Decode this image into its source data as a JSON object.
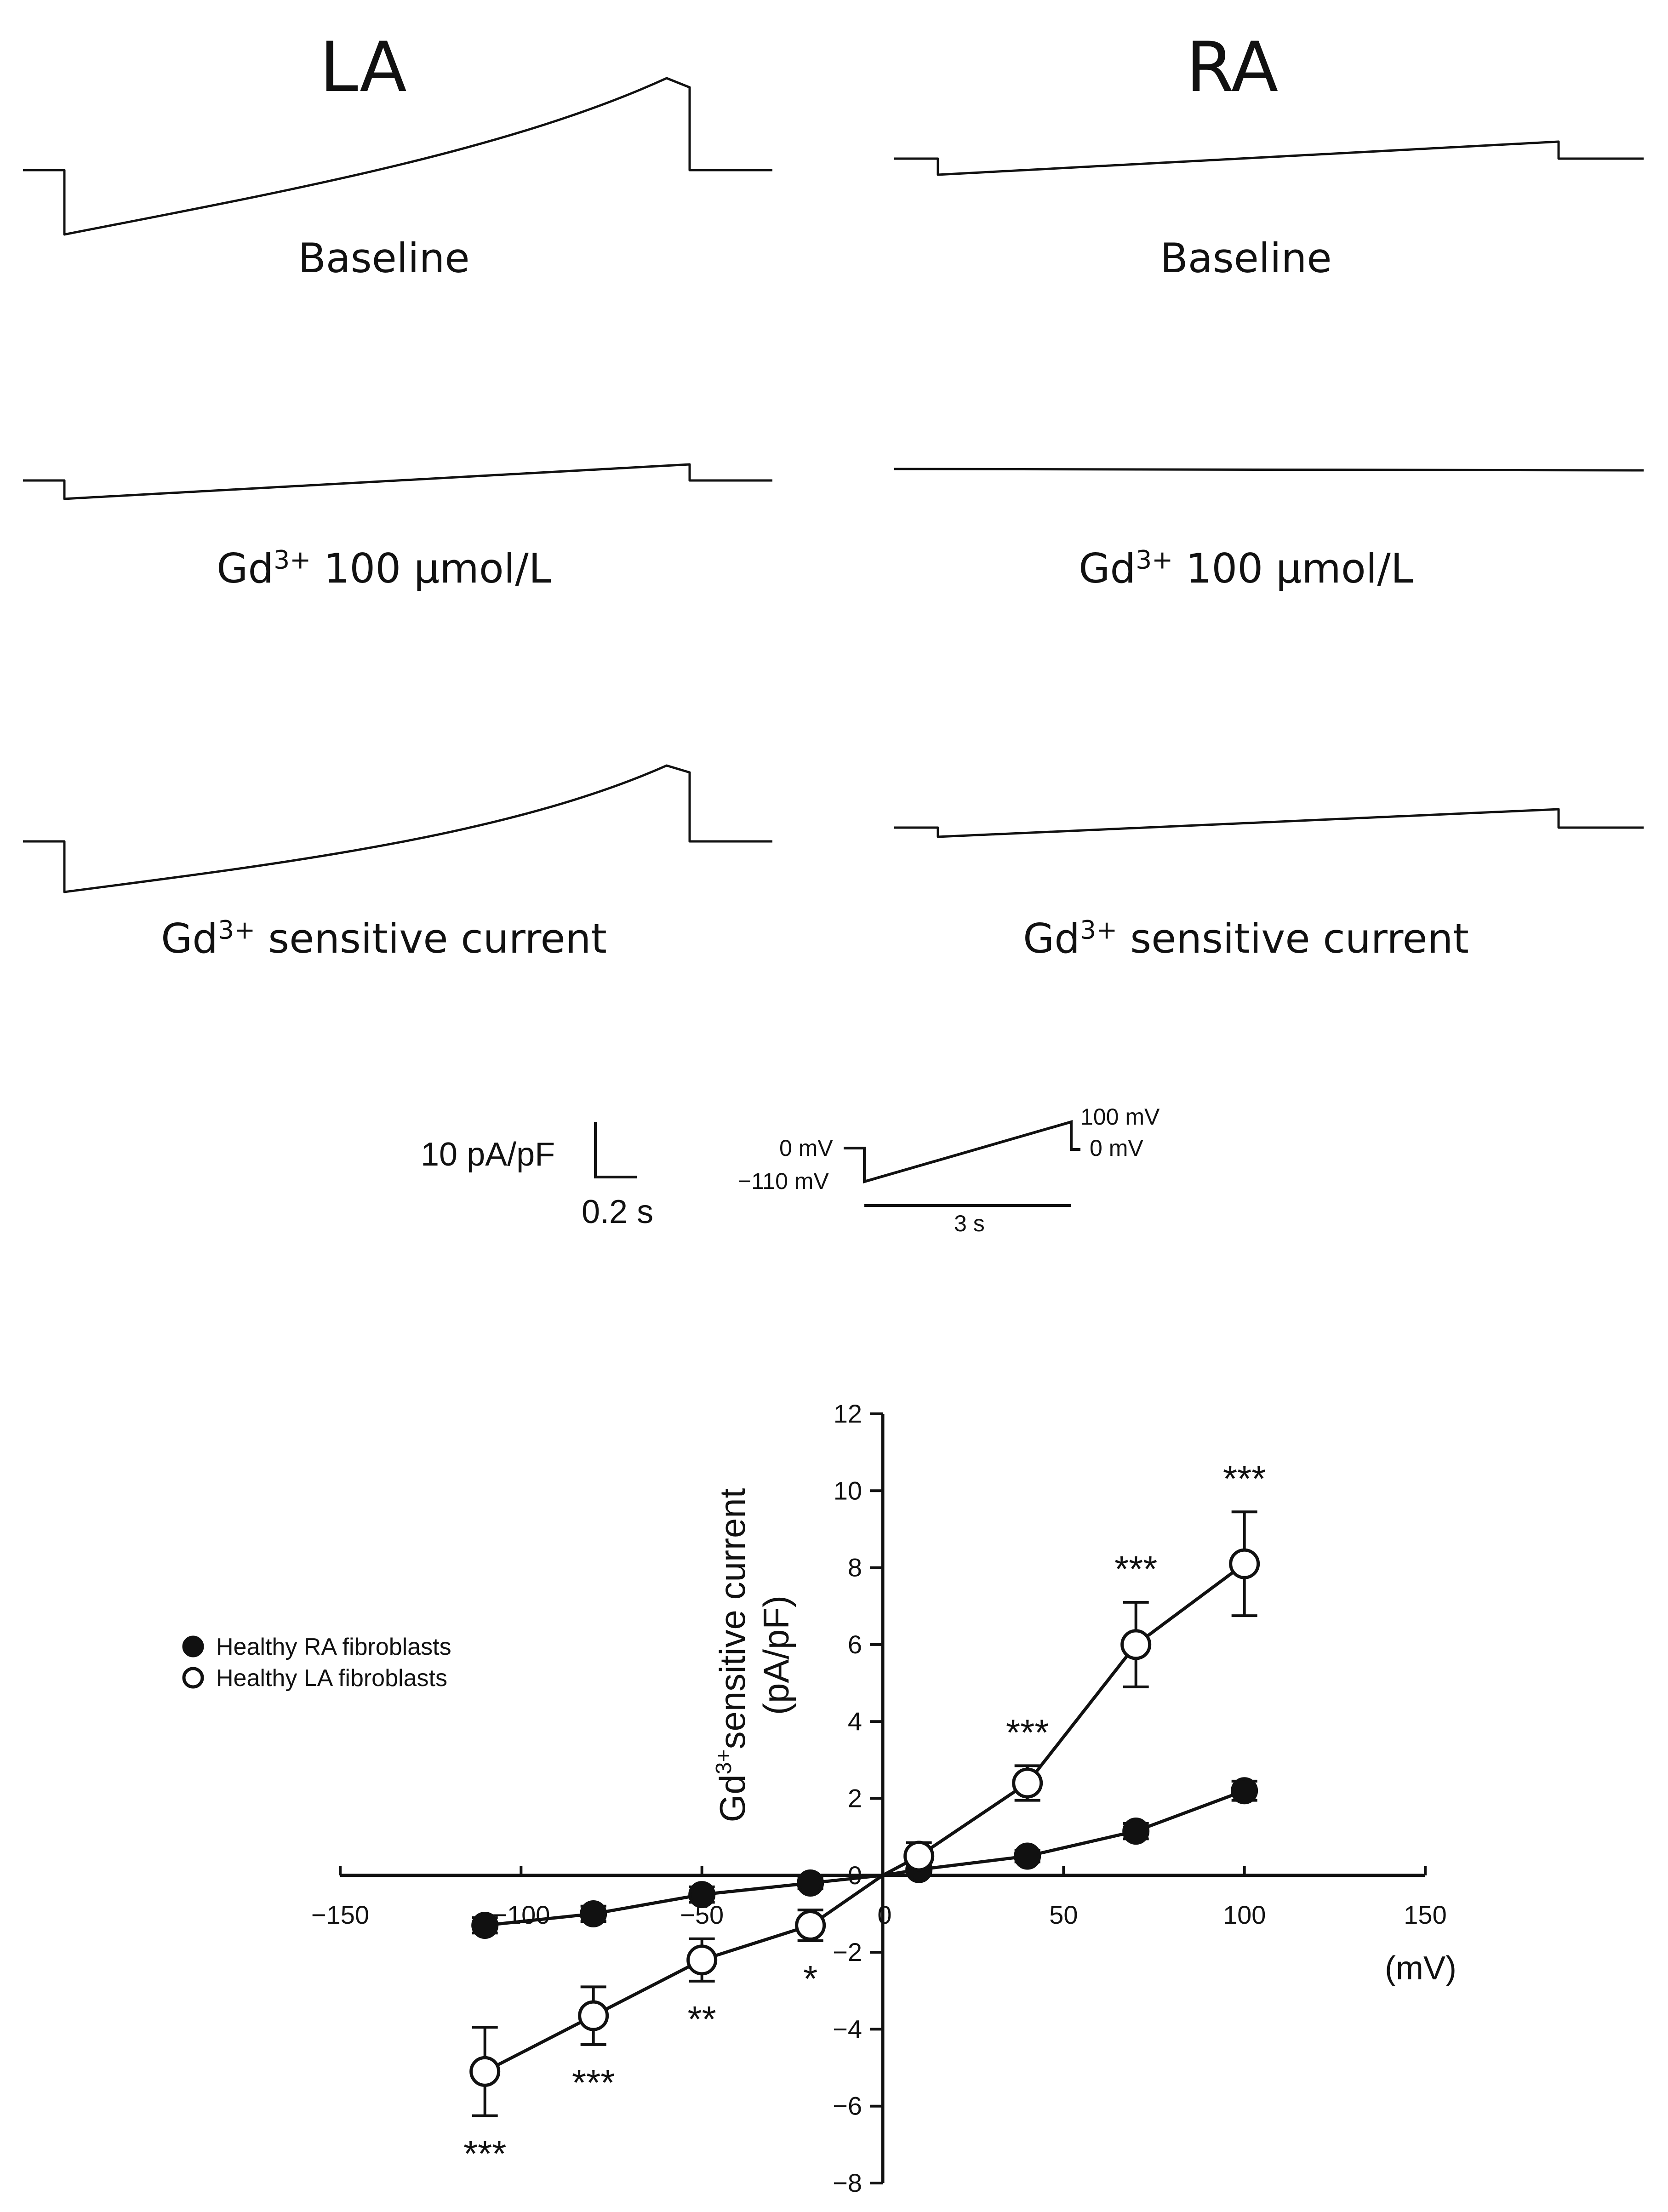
{
  "panels": {
    "la_title": "LA",
    "ra_title": "RA",
    "labels": {
      "baseline": "Baseline",
      "gd_prefix": "Gd",
      "gd_sup": "3+",
      "gd_dose_rest": " 100 µmol/L",
      "sensitive_rest": " sensitive current"
    }
  },
  "scale_bar": {
    "current": "10 pA/pF",
    "time": "0.2 s"
  },
  "protocol": {
    "start_hold": "0 mV",
    "ramp_start": "−110 mV",
    "ramp_end": "100 mV",
    "end_hold": "0 mV",
    "duration": "3 s"
  },
  "chart_data": {
    "type": "scatter",
    "title": "",
    "xlabel": "(mV)",
    "ylabel_main": "sensitive current",
    "ylabel_prefix": "Gd",
    "ylabel_sup": "3+",
    "ylabel_units": "(pA/pF)",
    "xlim": [
      -150,
      150
    ],
    "ylim": [
      -8,
      12
    ],
    "xticks": [
      -150,
      -100,
      -50,
      0,
      50,
      100,
      150
    ],
    "yticks": [
      -8,
      -6,
      -4,
      -2,
      0,
      2,
      4,
      6,
      8,
      10,
      12
    ],
    "legend_position": "left",
    "series": [
      {
        "name": "Healthy RA fibroblasts",
        "marker": "filled-circle",
        "x": [
          -110,
          -80,
          -50,
          -20,
          0,
          10,
          40,
          70,
          100
        ],
        "y": [
          -1.3,
          -1.0,
          -0.5,
          -0.2,
          0,
          0.15,
          0.5,
          1.15,
          2.2
        ],
        "err": [
          0.2,
          0.2,
          0.2,
          0.15,
          0,
          0.1,
          0.15,
          0.2,
          0.25
        ]
      },
      {
        "name": "Healthy LA fibroblasts",
        "marker": "open-circle",
        "x": [
          -110,
          -80,
          -50,
          -20,
          0,
          10,
          40,
          70,
          100
        ],
        "y": [
          -5.1,
          -3.65,
          -2.2,
          -1.3,
          0,
          0.5,
          2.4,
          6.0,
          8.1
        ],
        "err": [
          1.15,
          0.75,
          0.55,
          0.4,
          0,
          0.35,
          0.45,
          1.1,
          1.35
        ]
      }
    ],
    "annotations": [
      {
        "x": -110,
        "y": -5.1,
        "text": "***",
        "position": "below"
      },
      {
        "x": -80,
        "y": -3.65,
        "text": "***",
        "position": "below"
      },
      {
        "x": -50,
        "y": -2.2,
        "text": "**",
        "position": "below"
      },
      {
        "x": -20,
        "y": -1.3,
        "text": "*",
        "position": "below"
      },
      {
        "x": 40,
        "y": 2.4,
        "text": "***",
        "position": "above"
      },
      {
        "x": 70,
        "y": 6.0,
        "text": "***",
        "position": "above"
      },
      {
        "x": 100,
        "y": 8.1,
        "text": "***",
        "position": "above"
      }
    ]
  }
}
